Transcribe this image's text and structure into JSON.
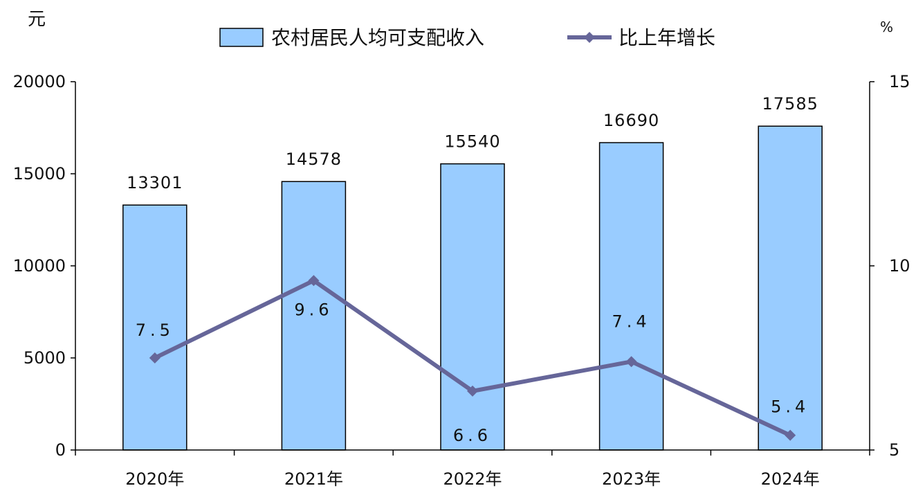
{
  "chart_data": {
    "type": "bar",
    "categories": [
      "2020年",
      "2021年",
      "2022年",
      "2023年",
      "2024年"
    ],
    "series": [
      {
        "name": "农村居民人均可支配收入",
        "axis": "left",
        "type": "bar",
        "values": [
          13301,
          14578,
          15540,
          16690,
          17585
        ],
        "labels": [
          "13301",
          "14578",
          "15540",
          "16690",
          "17585"
        ]
      },
      {
        "name": "比上年增长",
        "axis": "right",
        "type": "line",
        "values": [
          7.5,
          9.6,
          6.6,
          7.4,
          5.4
        ],
        "labels": [
          "7.5",
          "9.6",
          "6.6",
          "7.4",
          "5.4"
        ]
      }
    ],
    "left_axis": {
      "unit": "元",
      "ylim": [
        0,
        20000
      ],
      "ticks": [
        "0",
        "5000",
        "10000",
        "15000",
        "20000"
      ]
    },
    "right_axis": {
      "unit": "%",
      "ylim": [
        5,
        15
      ],
      "ticks": [
        "5",
        "10",
        "15"
      ]
    },
    "legend_position": "top-center",
    "grid": false,
    "colors": {
      "bar_fill": "#99CCFF",
      "bar_stroke": "#000000",
      "line": "#666699"
    }
  }
}
